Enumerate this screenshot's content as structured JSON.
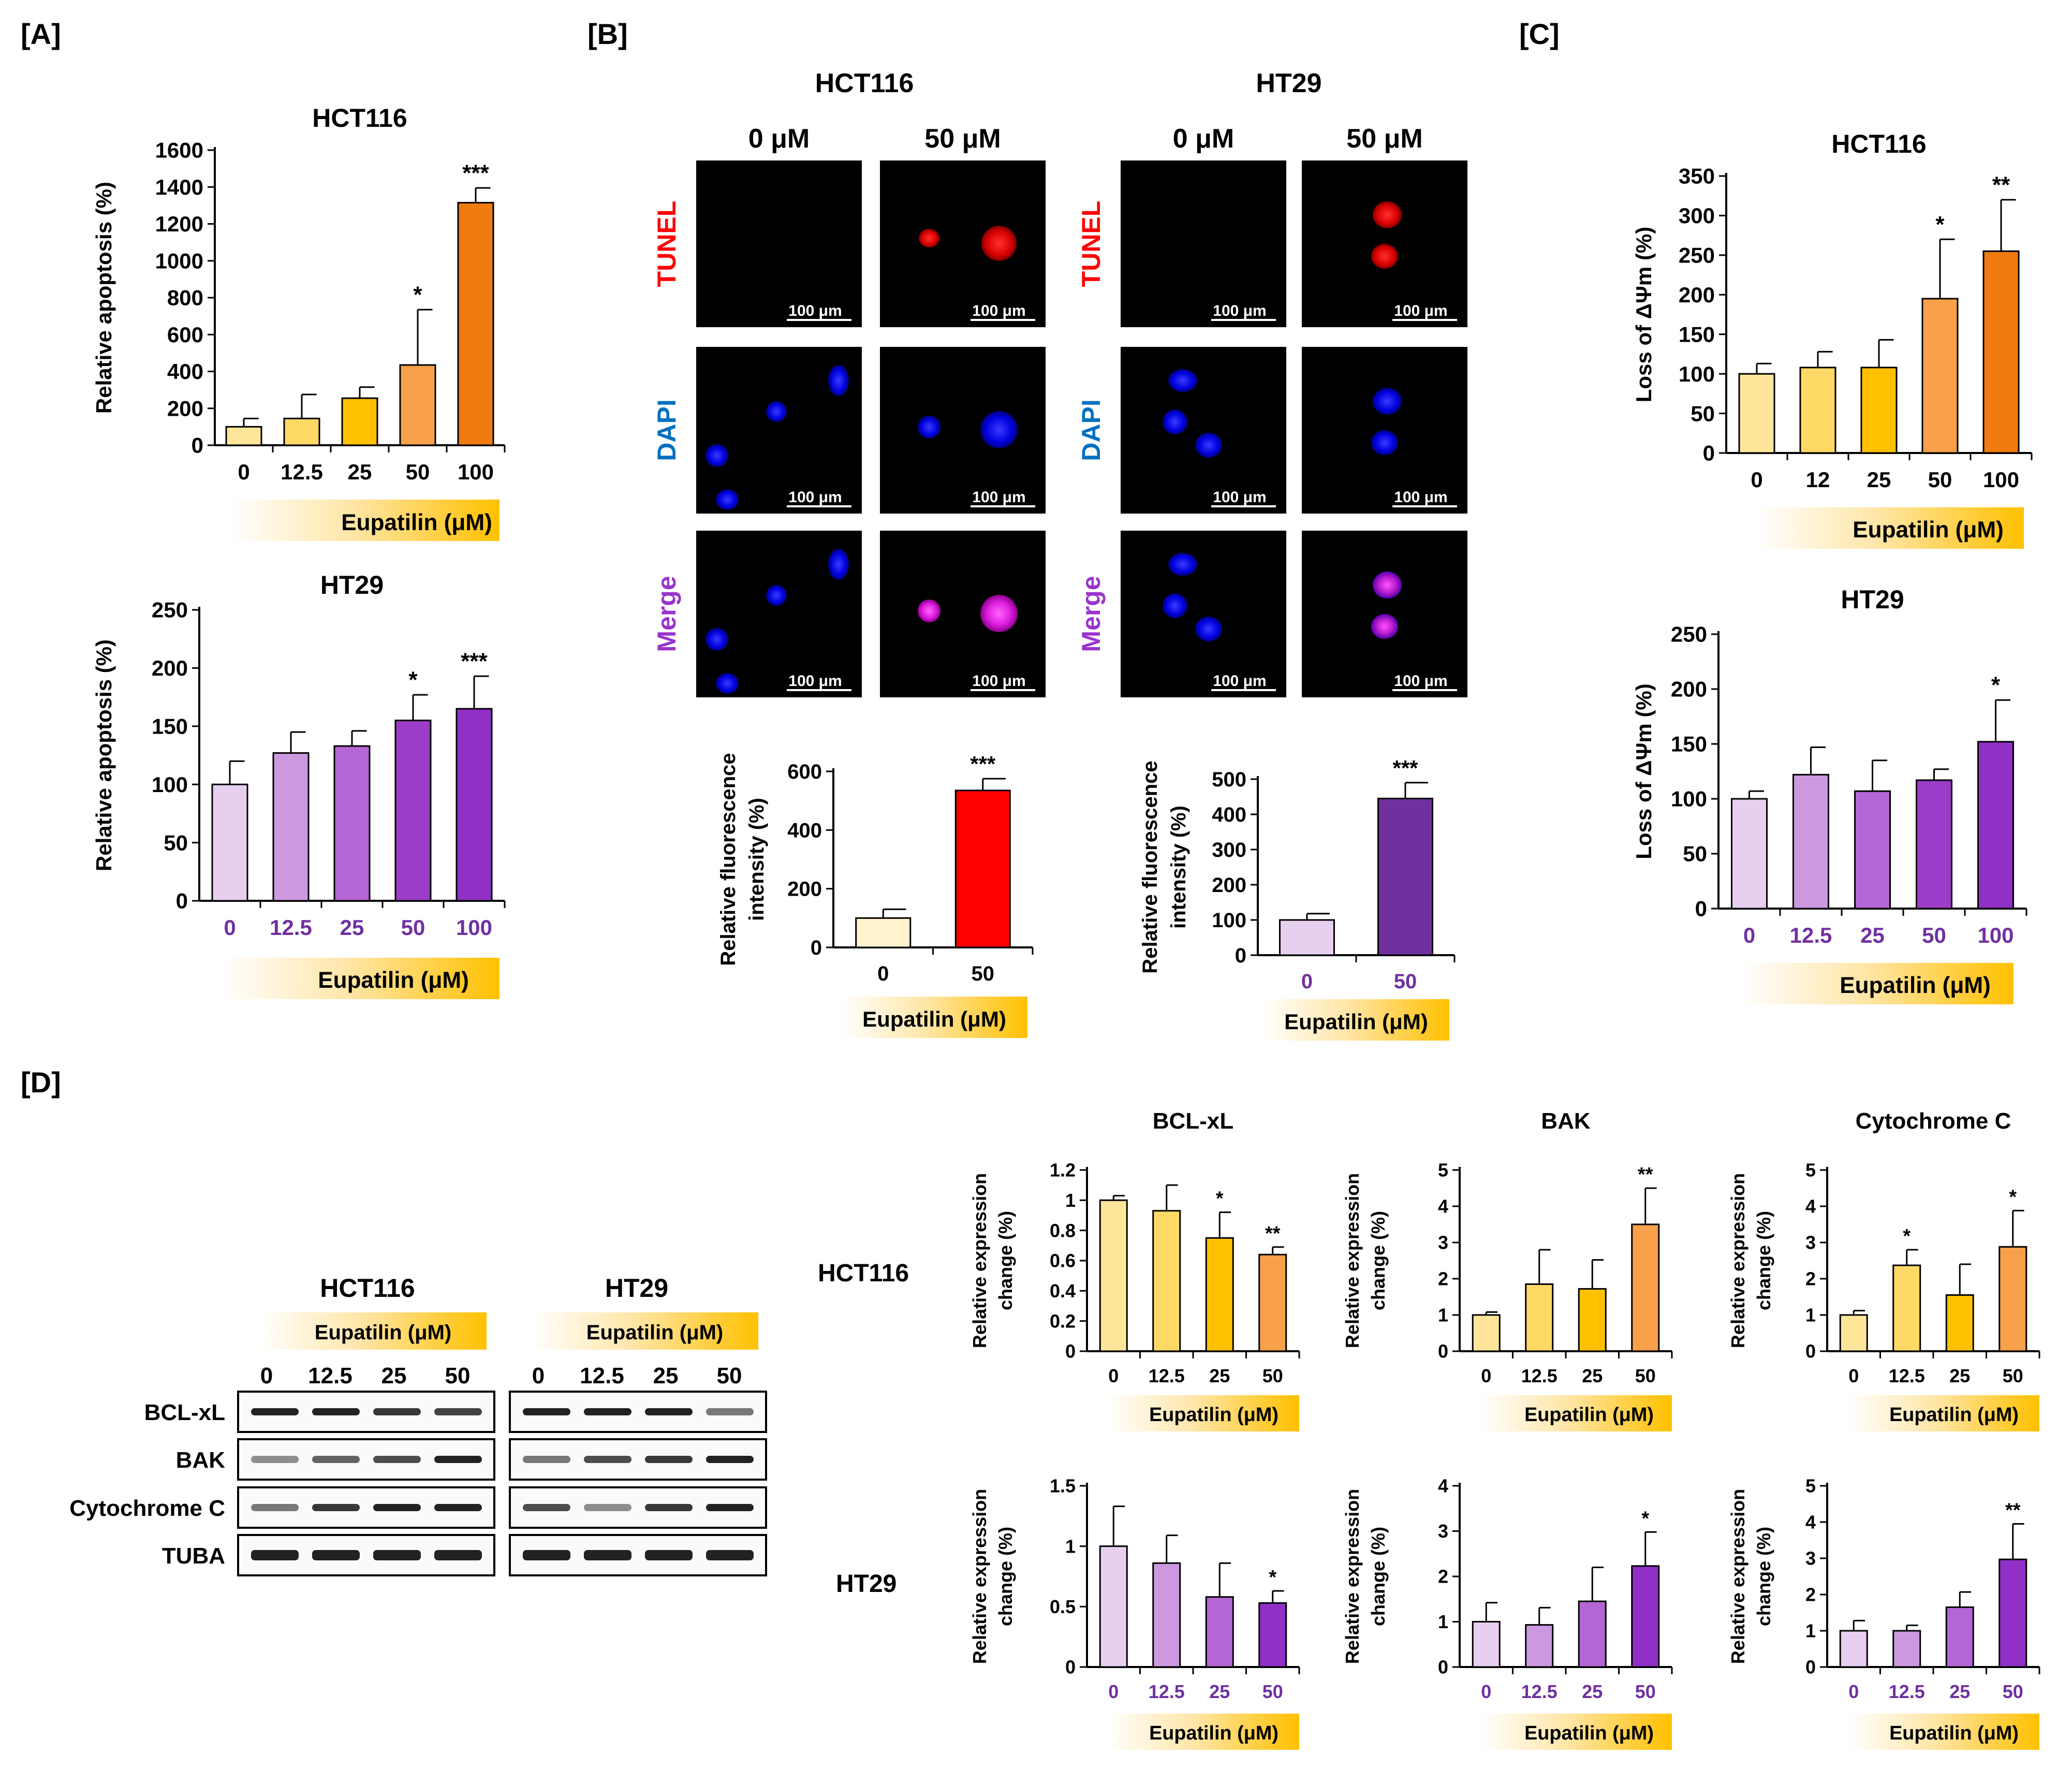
{
  "panel_labels": {
    "A": "[A]",
    "B": "[B]",
    "C": "[C]",
    "D": "[D]"
  },
  "colors": {
    "orange": [
      "#FFE59A",
      "#FFD966",
      "#FFC000",
      "#F8A04A",
      "#F07B10"
    ],
    "purple": [
      "#E7CFF0",
      "#CC99E0",
      "#B466D4",
      "#9C3CC8",
      "#9030C6"
    ],
    "tick_purple": "#7030A0",
    "tunel": "#FF0000",
    "dapi": "#0070C0",
    "merge": "#9933CC"
  },
  "chart_data": [
    {
      "id": "A_HCT116",
      "type": "bar",
      "title": "HCT116",
      "ylabel": "Relative apoptosis  (%)",
      "xlabel": "Eupatilin (μM)",
      "categories": [
        "0",
        "12.5",
        "25",
        "50",
        "100"
      ],
      "values": [
        100,
        145,
        255,
        435,
        1315
      ],
      "errors": [
        45,
        130,
        60,
        300,
        80
      ],
      "significance": [
        "",
        "",
        "",
        "*",
        "***"
      ],
      "ylim": [
        0,
        1600
      ],
      "yticks": [
        0,
        200,
        400,
        600,
        800,
        1000,
        1200,
        1400,
        1600
      ],
      "palette": "orange",
      "grid": false
    },
    {
      "id": "A_HT29",
      "type": "bar",
      "title": "HT29",
      "ylabel": "Relative apoptosis  (%)",
      "xlabel": "Eupatilin (μM)",
      "categories": [
        "0",
        "12.5",
        "25",
        "50",
        "100"
      ],
      "values": [
        100,
        127,
        133,
        155,
        165
      ],
      "errors": [
        20,
        18,
        13,
        22,
        28
      ],
      "significance": [
        "",
        "",
        "",
        "*",
        "***"
      ],
      "ylim": [
        0,
        250
      ],
      "yticks": [
        0,
        50,
        100,
        150,
        200,
        250
      ],
      "palette": "purple",
      "grid": false
    },
    {
      "id": "B_HCT116",
      "type": "bar",
      "title": "",
      "ylabel": [
        "Relative fluorescence",
        "intensity (%)"
      ],
      "xlabel": "Eupatilin (μM)",
      "categories": [
        "0",
        "50"
      ],
      "values": [
        100,
        535
      ],
      "errors": [
        30,
        40
      ],
      "significance": [
        "",
        "***"
      ],
      "ylim": [
        0,
        600
      ],
      "yticks": [
        0,
        200,
        400,
        600
      ],
      "bar_colors": [
        "#FFF2CC",
        "#FF0000"
      ],
      "grid": false
    },
    {
      "id": "B_HT29",
      "type": "bar",
      "title": "",
      "ylabel": [
        "Relative fluorescence",
        "intensity (%)"
      ],
      "xlabel": "Eupatilin (μM)",
      "categories": [
        "0",
        "50"
      ],
      "values": [
        100,
        445
      ],
      "errors": [
        18,
        45
      ],
      "significance": [
        "",
        "***"
      ],
      "ylim": [
        0,
        500
      ],
      "yticks": [
        0,
        100,
        200,
        300,
        400,
        500
      ],
      "bar_colors": [
        "#E7CFF0",
        "#7030A0"
      ],
      "grid": false
    },
    {
      "id": "C_HCT116",
      "type": "bar",
      "title": "HCT116",
      "ylabel": "Loss of ΔΨm (%)",
      "xlabel": "Eupatilin (μM)",
      "categories": [
        "0",
        "12",
        "25",
        "50",
        "100"
      ],
      "values": [
        100,
        108,
        108,
        195,
        255
      ],
      "errors": [
        13,
        20,
        35,
        75,
        65
      ],
      "significance": [
        "",
        "",
        "",
        "*",
        "**"
      ],
      "ylim": [
        0,
        350
      ],
      "yticks": [
        0,
        50,
        100,
        150,
        200,
        250,
        300,
        350
      ],
      "palette": "orange",
      "grid": false
    },
    {
      "id": "C_HT29",
      "type": "bar",
      "title": "HT29",
      "ylabel": "Loss of ΔΨm (%)",
      "xlabel": "Eupatilin (μM)",
      "categories": [
        "0",
        "12.5",
        "25",
        "50",
        "100"
      ],
      "values": [
        100,
        122,
        107,
        117,
        152
      ],
      "errors": [
        7,
        25,
        28,
        10,
        38
      ],
      "significance": [
        "",
        "",
        "",
        "",
        "*"
      ],
      "ylim": [
        0,
        250
      ],
      "yticks": [
        0,
        50,
        100,
        150,
        200,
        250
      ],
      "palette": "purple",
      "grid": false
    },
    {
      "id": "D_HCT116_BCLxL",
      "type": "bar",
      "title": "BCL-xL",
      "ylabel": [
        "Relative expression",
        "change (%)"
      ],
      "xlabel": "Eupatilin (μM)",
      "categories": [
        "0",
        "12.5",
        "25",
        "50"
      ],
      "values": [
        1.0,
        0.93,
        0.75,
        0.64
      ],
      "errors": [
        0.03,
        0.17,
        0.17,
        0.05
      ],
      "significance": [
        "",
        "",
        "*",
        "**"
      ],
      "ylim": [
        0,
        1.2
      ],
      "yticks": [
        0,
        0.2,
        0.4,
        0.6,
        0.8,
        1,
        1.2
      ],
      "palette": "orange4",
      "grid": false
    },
    {
      "id": "D_HCT116_BAK",
      "type": "bar",
      "title": "BAK",
      "ylabel": [
        "Relative expression",
        "change (%)"
      ],
      "xlabel": "Eupatilin (μM)",
      "categories": [
        "0",
        "12.5",
        "25",
        "50"
      ],
      "values": [
        1.0,
        1.85,
        1.72,
        3.5
      ],
      "errors": [
        0.08,
        0.95,
        0.8,
        1.0
      ],
      "significance": [
        "",
        "",
        "",
        "**"
      ],
      "ylim": [
        0,
        5
      ],
      "yticks": [
        0,
        1,
        2,
        3,
        4,
        5
      ],
      "palette": "orange4",
      "grid": false
    },
    {
      "id": "D_HCT116_CytC",
      "type": "bar",
      "title": "Cytochrome C",
      "ylabel": [
        "Relative expression",
        "change (%)"
      ],
      "xlabel": "Eupatilin (μM)",
      "categories": [
        "0",
        "12.5",
        "25",
        "50"
      ],
      "values": [
        1.0,
        2.37,
        1.55,
        2.88
      ],
      "errors": [
        0.12,
        0.43,
        0.85,
        1.0
      ],
      "significance": [
        "",
        "*",
        "",
        "*"
      ],
      "ylim": [
        0,
        5
      ],
      "yticks": [
        0,
        1,
        2,
        3,
        4,
        5
      ],
      "palette": "orange4",
      "grid": false
    },
    {
      "id": "D_HT29_BCLxL",
      "type": "bar",
      "title": "",
      "ylabel": [
        "Relative expression",
        "change (%)"
      ],
      "xlabel": "Eupatilin (μM)",
      "categories": [
        "0",
        "12.5",
        "25",
        "50"
      ],
      "values": [
        1.0,
        0.86,
        0.58,
        0.53
      ],
      "errors": [
        0.33,
        0.23,
        0.28,
        0.1
      ],
      "significance": [
        "",
        "",
        "",
        "*"
      ],
      "ylim": [
        0,
        1.5
      ],
      "yticks": [
        0,
        0.5,
        1,
        1.5
      ],
      "palette": "purple4",
      "grid": false
    },
    {
      "id": "D_HT29_BAK",
      "type": "bar",
      "title": "",
      "ylabel": [
        "Relative expression",
        "change (%)"
      ],
      "xlabel": "Eupatilin (μM)",
      "categories": [
        "0",
        "12.5",
        "25",
        "50"
      ],
      "values": [
        1.0,
        0.93,
        1.45,
        2.23
      ],
      "errors": [
        0.42,
        0.38,
        0.75,
        0.75
      ],
      "significance": [
        "",
        "",
        "",
        "*"
      ],
      "ylim": [
        0,
        4
      ],
      "yticks": [
        0,
        1,
        2,
        3,
        4
      ],
      "palette": "purple4",
      "grid": false
    },
    {
      "id": "D_HT29_CytC",
      "type": "bar",
      "title": "",
      "ylabel": [
        "Relative expression",
        "change (%)"
      ],
      "xlabel": "Eupatilin (μM)",
      "categories": [
        "0",
        "12.5",
        "25",
        "50"
      ],
      "values": [
        1.0,
        1.0,
        1.65,
        2.97
      ],
      "errors": [
        0.28,
        0.15,
        0.42,
        0.98
      ],
      "significance": [
        "",
        "",
        "",
        "**"
      ],
      "ylim": [
        0,
        5
      ],
      "yticks": [
        0,
        1,
        2,
        3,
        4,
        5
      ],
      "palette": "purple4",
      "grid": false
    }
  ],
  "microscopy": {
    "groups": [
      {
        "cell_line": "HCT116",
        "columns": [
          "0 μM",
          "50 μM"
        ]
      },
      {
        "cell_line": "HT29",
        "columns": [
          "0 μM",
          "50 μM"
        ]
      }
    ],
    "rows": [
      "TUNEL",
      "DAPI",
      "Merge"
    ],
    "scale_bar": "100 μm"
  },
  "western_blot": {
    "cell_lines": [
      "HCT116",
      "HT29"
    ],
    "treatment_label": "Eupatilin (μM)",
    "doses": [
      "0",
      "12.5",
      "25",
      "50"
    ],
    "proteins": [
      "BCL-xL",
      "BAK",
      "Cytochrome C",
      "TUBA"
    ]
  },
  "panel_d_row_labels": [
    "HCT116",
    "HT29"
  ]
}
